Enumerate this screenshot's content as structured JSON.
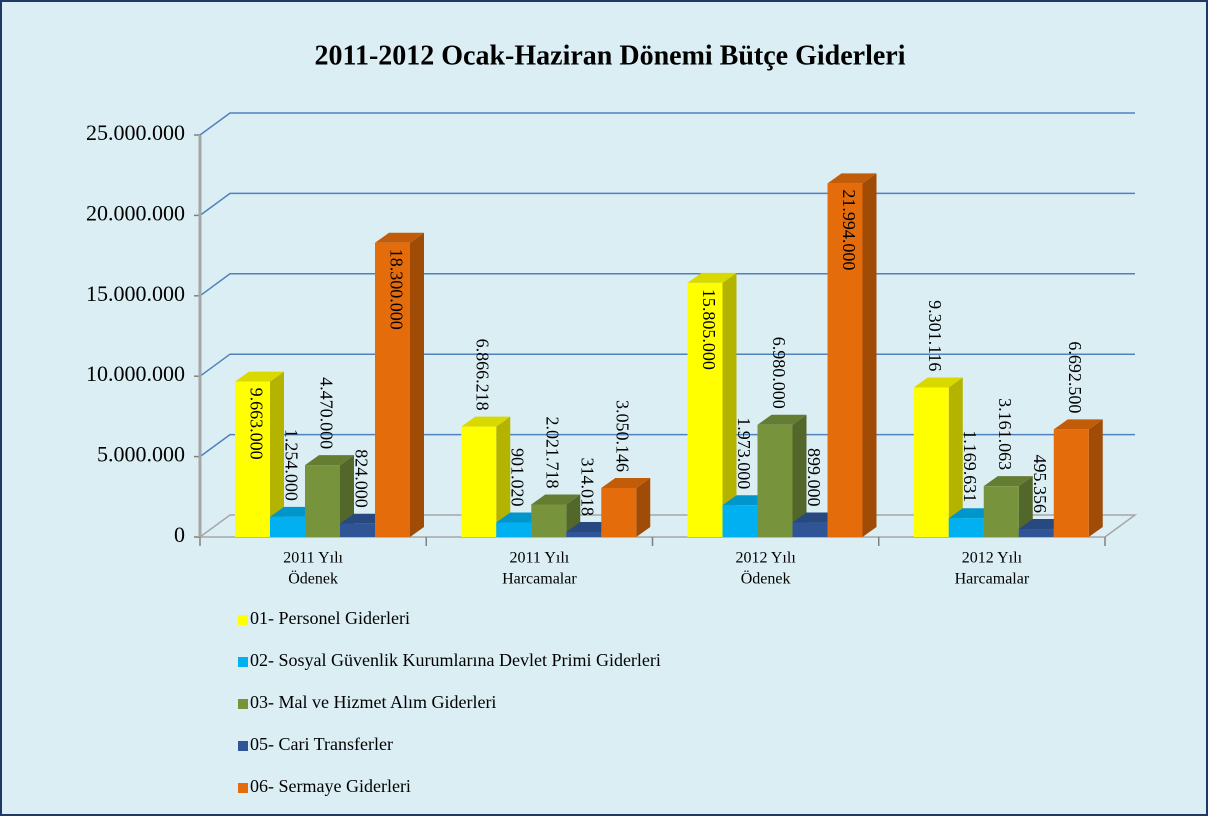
{
  "chart_data": {
    "type": "bar3d",
    "title": "2011-2012 Ocak-Haziran Dönemi Bütçe Giderleri",
    "categories": [
      [
        "2011 Yılı",
        "Ödenek"
      ],
      [
        "2011 Yılı",
        "Harcamalar"
      ],
      [
        "2012 Yılı",
        "Ödenek"
      ],
      [
        "2012 Yılı",
        "Harcamalar"
      ]
    ],
    "series": [
      {
        "name": "01- Personel Giderleri",
        "color": "#ffff00",
        "values": [
          9663000,
          6866218,
          15805000,
          9301116
        ],
        "value_labels": [
          "9.663.000",
          "6.866.218",
          "15.805.000",
          "9.301.116"
        ]
      },
      {
        "name": "02- Sosyal Güvenlik Kurumlarına Devlet Primi Giderleri",
        "color": "#00b0f0",
        "values": [
          1254000,
          901020,
          1973000,
          1169631
        ],
        "value_labels": [
          "1.254.000",
          "901.020",
          "1.973.000",
          "1.169.631"
        ]
      },
      {
        "name": "03- Mal ve Hizmet Alım Giderleri",
        "color": "#77933c",
        "values": [
          4470000,
          2021718,
          6980000,
          3161063
        ],
        "value_labels": [
          "4.470.000",
          "2.021.718",
          "6.980.000",
          "3.161.063"
        ]
      },
      {
        "name": "05- Cari Transferler",
        "color": "#2f5597",
        "values": [
          824000,
          314018,
          899000,
          495356
        ],
        "value_labels": [
          "824.000",
          "314.018",
          "899.000",
          "495.356"
        ]
      },
      {
        "name": "06- Sermaye Giderleri",
        "color": "#e46c0a",
        "values": [
          18300000,
          3050146,
          21994000,
          6692500
        ],
        "value_labels": [
          "18.300.000",
          "3.050.146",
          "21.994.000",
          "6.692.500"
        ]
      }
    ],
    "ylim": [
      0,
      25000000
    ],
    "yticks": [
      0,
      {
        "value": 5000000,
        "label": "5.000.000"
      },
      {
        "value": 10000000,
        "label": "10.000.000"
      },
      {
        "value": 15000000,
        "label": "15.000.000"
      },
      {
        "value": 20000000,
        "label": "20.000.000"
      },
      {
        "value": 25000000,
        "label": "25.000.000"
      }
    ],
    "grid": true,
    "legend": "bottom"
  }
}
